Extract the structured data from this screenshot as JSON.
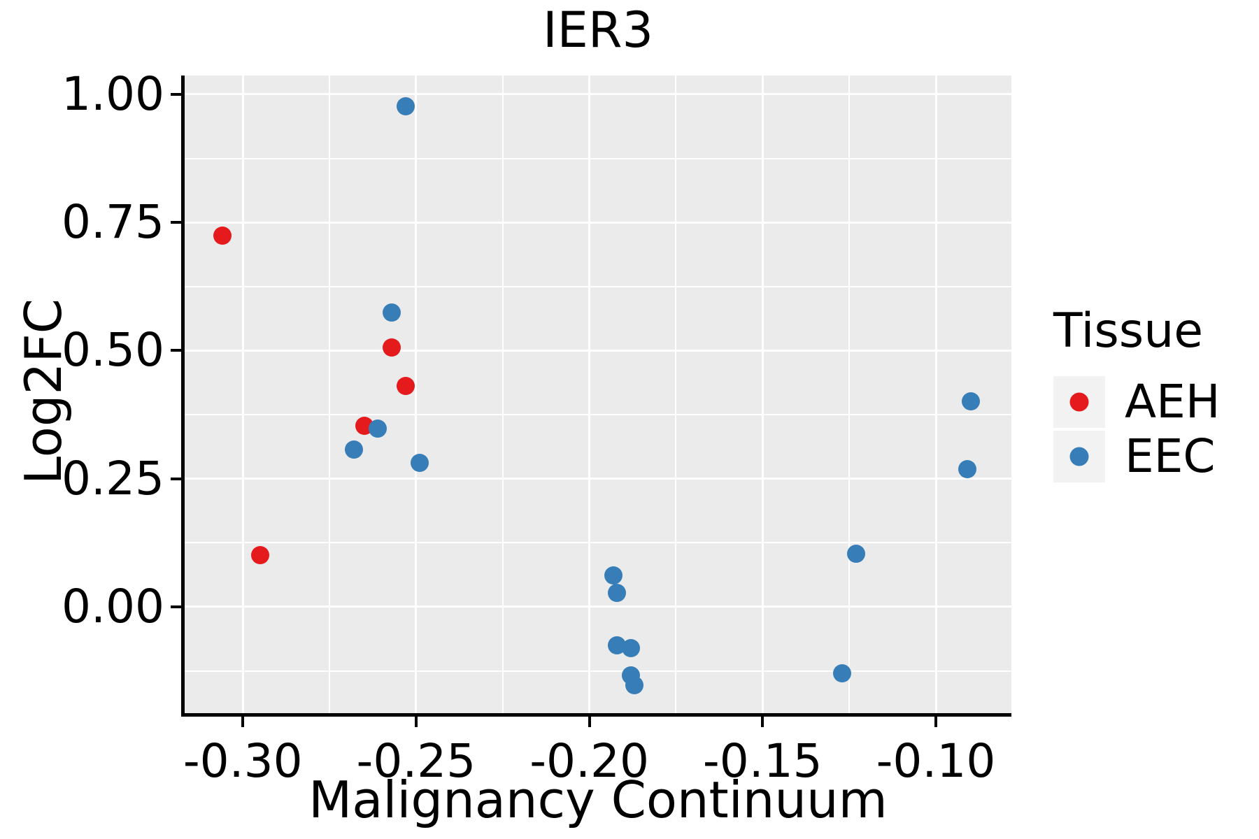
{
  "chart_data": {
    "type": "scatter",
    "title": "IER3",
    "xlabel": "Malignancy Continuum",
    "ylabel": "Log2FC",
    "grid": "major+minor",
    "panel_background": "#EBEBEB",
    "gridline_color": "#ffffff",
    "xlim": [
      -0.3168,
      -0.0782
    ],
    "ylim": [
      -0.2074,
      1.0368
    ],
    "x_ticks": [
      -0.3,
      -0.25,
      -0.2,
      -0.15,
      -0.1
    ],
    "y_ticks": [
      0.0,
      0.25,
      0.5,
      0.75,
      1.0
    ],
    "x_tick_labels": [
      "-0.30",
      "-0.25",
      "-0.20",
      "-0.15",
      "-0.10"
    ],
    "y_tick_labels": [
      "0.00",
      "0.25",
      "0.50",
      "0.75",
      "1.00"
    ],
    "legend": {
      "title": "Tissue",
      "position": "right",
      "entries": [
        {
          "name": "AEH",
          "color": "#E41A1C"
        },
        {
          "name": "EEC",
          "color": "#377EB8"
        }
      ]
    },
    "series": [
      {
        "name": "AEH",
        "color": "#E41A1C",
        "points": [
          [
            -0.306,
            0.725
          ],
          [
            -0.295,
            0.101
          ],
          [
            -0.257,
            0.506
          ],
          [
            -0.253,
            0.431
          ],
          [
            -0.265,
            0.353
          ]
        ]
      },
      {
        "name": "EEC",
        "color": "#377EB8",
        "points": [
          [
            -0.253,
            0.977
          ],
          [
            -0.257,
            0.574
          ],
          [
            -0.261,
            0.348
          ],
          [
            -0.268,
            0.307
          ],
          [
            -0.249,
            0.281
          ],
          [
            -0.193,
            0.061
          ],
          [
            -0.192,
            0.027
          ],
          [
            -0.192,
            -0.075
          ],
          [
            -0.188,
            -0.081
          ],
          [
            -0.188,
            -0.134
          ],
          [
            -0.187,
            -0.153
          ],
          [
            -0.123,
            0.104
          ],
          [
            -0.127,
            -0.13
          ],
          [
            -0.09,
            0.401
          ],
          [
            -0.091,
            0.269
          ]
        ]
      }
    ]
  }
}
